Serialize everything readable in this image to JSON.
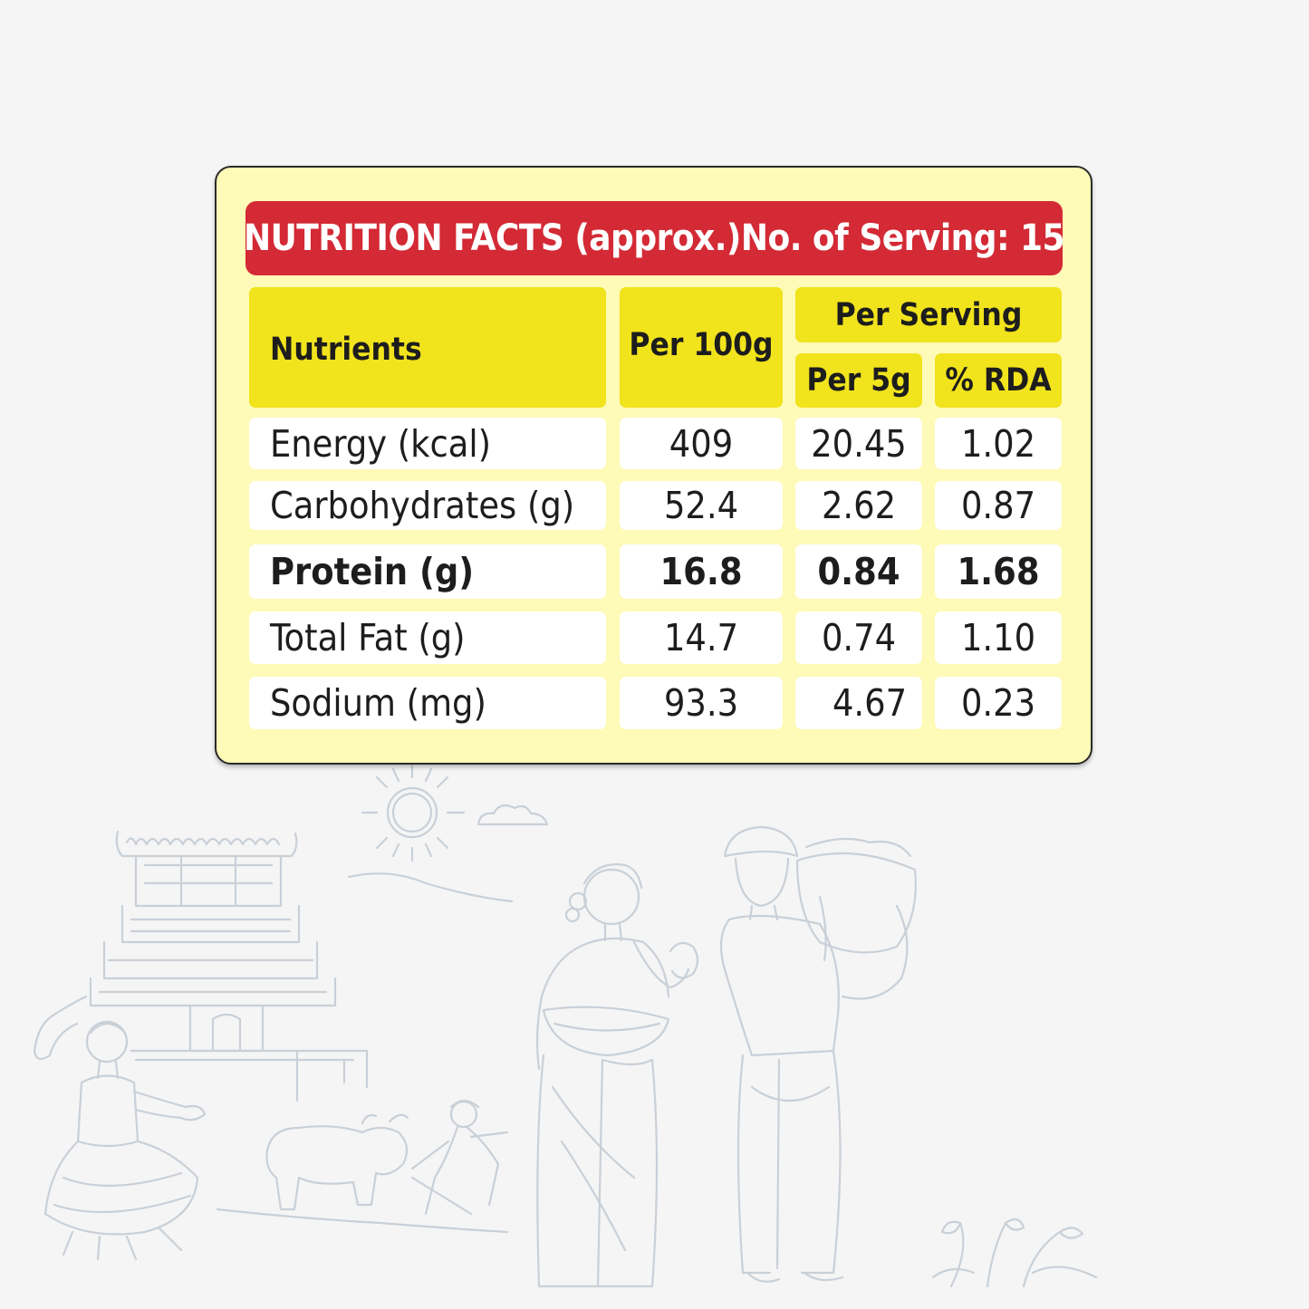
{
  "banner": {
    "title": "NUTRITION FACTS (approx.)",
    "servings": "No. of Serving: 15"
  },
  "header": {
    "nutrients": "Nutrients",
    "per_100g": "Per 100g",
    "per_serving": "Per Serving",
    "per_5g": "Per 5g",
    "rda": "% RDA"
  },
  "rows": [
    {
      "nutrient": "Energy (kcal)",
      "per_100g": "409",
      "per_5g": "20.45",
      "rda": "1.02"
    },
    {
      "nutrient": "Carbohydrates (g)",
      "per_100g": "52.4",
      "per_5g": "2.62",
      "rda": "0.87"
    },
    {
      "nutrient": "Protein (g)",
      "per_100g": "16.8",
      "per_5g": "0.84",
      "rda": "1.68",
      "highlighted": true
    },
    {
      "nutrient": "Total Fat (g)",
      "per_100g": "14.7",
      "per_5g": "0.74",
      "rda": "1.10"
    },
    {
      "nutrient": "Sodium (mg)",
      "per_100g": "93.3",
      "per_5g": "4.67",
      "rda": "0.23"
    }
  ],
  "colors": {
    "background": "#f5f5f5",
    "card": "#fefab7",
    "banner": "#d32a35",
    "header_cell": "#f1e31c",
    "row_cell": "#ffffff",
    "illustration_stroke": "#c9d0d8"
  }
}
